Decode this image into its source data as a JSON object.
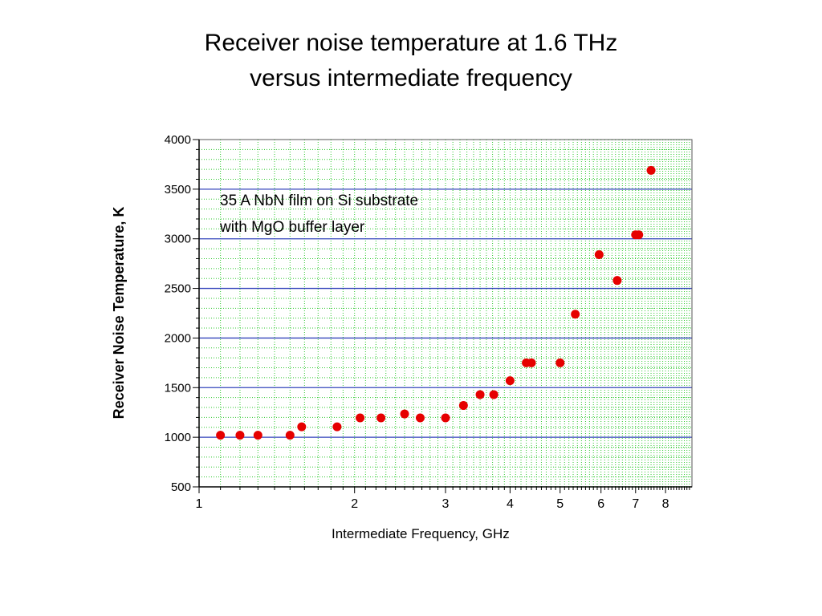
{
  "slide": {
    "title_line1": "Receiver noise temperature at 1.6 THz",
    "title_line2": "versus intermediate frequency"
  },
  "chart_data": {
    "type": "scatter",
    "xscale": "log",
    "xlabel": "Intermediate Frequency, GHz",
    "ylabel": "Receiver Noise Temperature, K",
    "xlim": [
      1,
      9
    ],
    "ylim": [
      500,
      4000
    ],
    "xticks": [
      1,
      2,
      3,
      4,
      5,
      6,
      7,
      8
    ],
    "yticks": [
      500,
      1000,
      1500,
      2000,
      2500,
      3000,
      3500,
      4000
    ],
    "grid": true,
    "annotation_line1": "35 A NbN film  on Si substrate",
    "annotation_line2": "with MgO buffer layer",
    "colors": {
      "marker": "#e60000",
      "major_grid": "#3344bb",
      "minor_grid": "#2ec82e"
    },
    "points": [
      {
        "x": 1.1,
        "y": 1020
      },
      {
        "x": 1.2,
        "y": 1020
      },
      {
        "x": 1.3,
        "y": 1020
      },
      {
        "x": 1.5,
        "y": 1020
      },
      {
        "x": 1.58,
        "y": 1105
      },
      {
        "x": 1.85,
        "y": 1105
      },
      {
        "x": 2.05,
        "y": 1195
      },
      {
        "x": 2.25,
        "y": 1195
      },
      {
        "x": 2.5,
        "y": 1235
      },
      {
        "x": 2.68,
        "y": 1195
      },
      {
        "x": 3.0,
        "y": 1195
      },
      {
        "x": 3.25,
        "y": 1320
      },
      {
        "x": 3.5,
        "y": 1430
      },
      {
        "x": 3.72,
        "y": 1430
      },
      {
        "x": 4.0,
        "y": 1570
      },
      {
        "x": 4.3,
        "y": 1750
      },
      {
        "x": 4.4,
        "y": 1750
      },
      {
        "x": 5.0,
        "y": 1750
      },
      {
        "x": 5.35,
        "y": 2240
      },
      {
        "x": 5.95,
        "y": 2840
      },
      {
        "x": 6.45,
        "y": 2580
      },
      {
        "x": 7.0,
        "y": 3040
      },
      {
        "x": 7.1,
        "y": 3040
      },
      {
        "x": 7.5,
        "y": 3690
      }
    ]
  }
}
